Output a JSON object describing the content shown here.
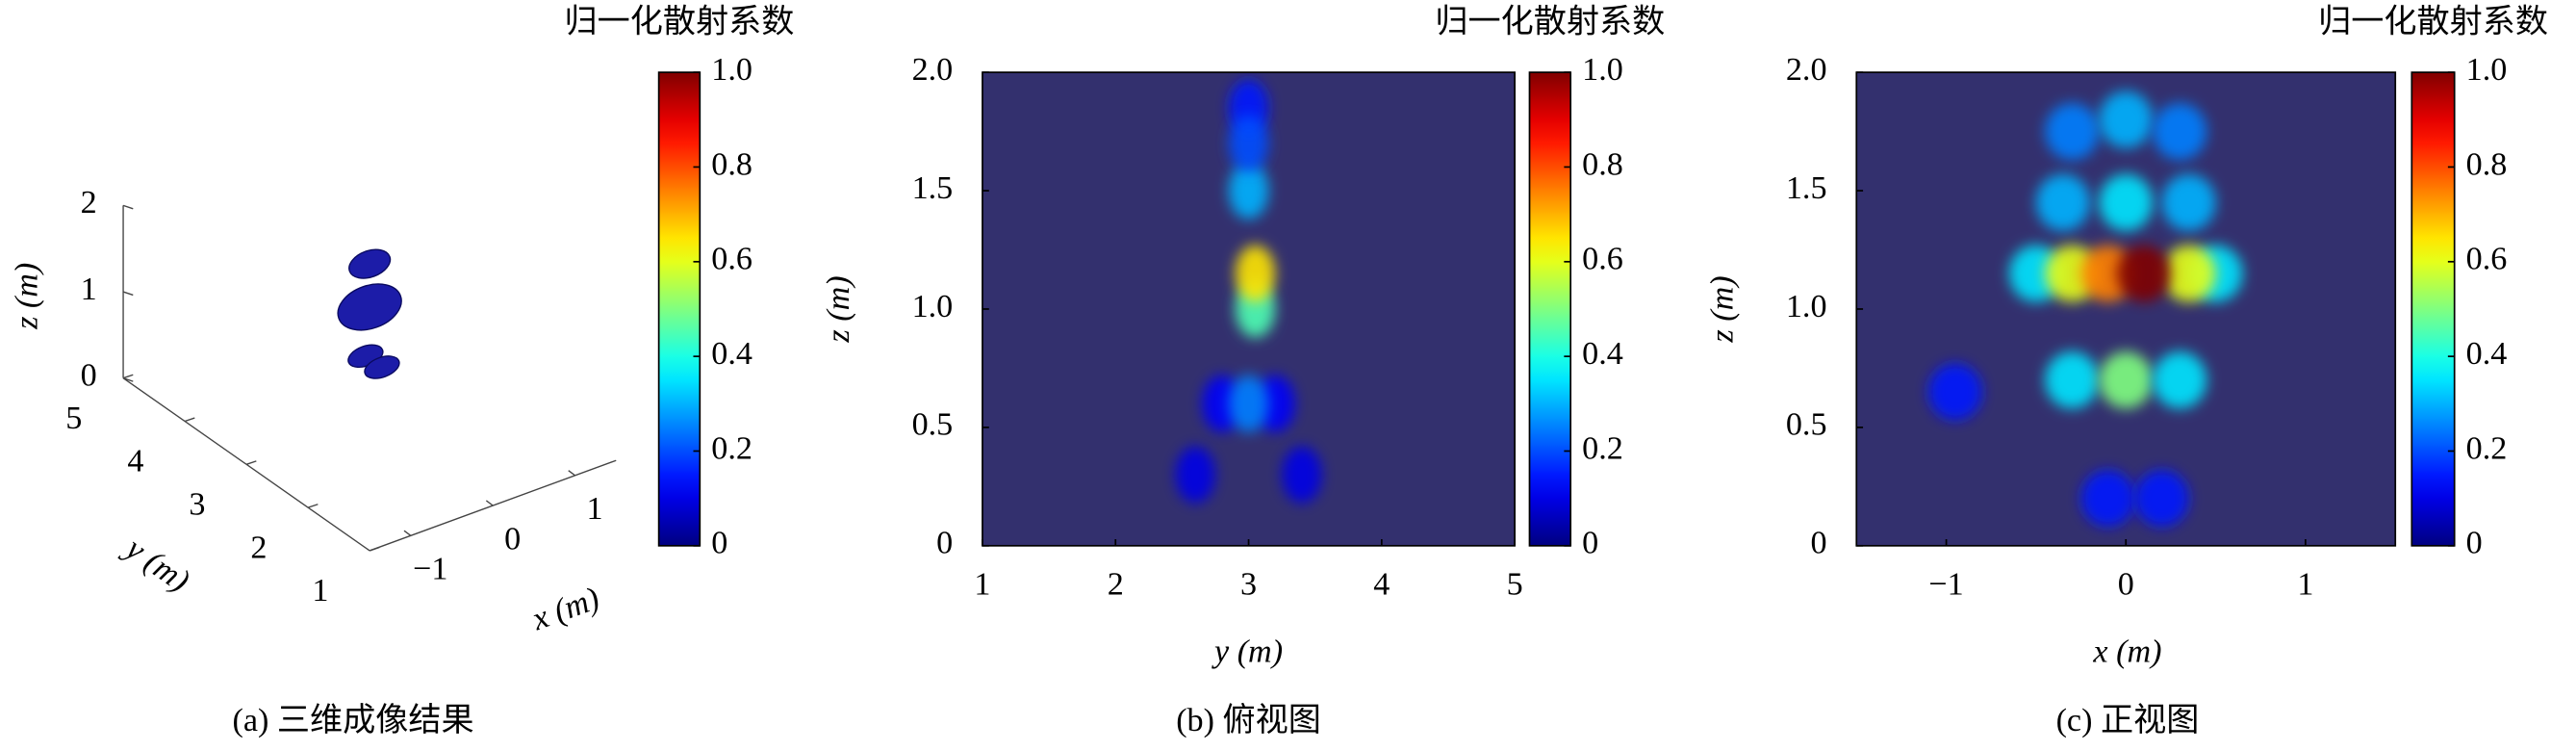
{
  "chart_data": [
    {
      "type": "scatter3d",
      "caption": "(a) 三维成像结果",
      "xlabel": "x (m)",
      "ylabel": "y (m)",
      "zlabel": "z (m)",
      "xlim": [
        -1.5,
        1.5
      ],
      "ylim": [
        1,
        5
      ],
      "zlim": [
        0,
        2
      ],
      "xticks": [
        {
          "value": -1,
          "label": "−1"
        },
        0,
        1
      ],
      "yticks": [
        1,
        2,
        3,
        4,
        5
      ],
      "zticks": [
        0,
        1,
        2
      ],
      "x": [
        0,
        0,
        -0.05,
        0.15
      ],
      "y": [
        3,
        3,
        3,
        3
      ],
      "z": [
        1.8,
        1.3,
        0.75,
        0.55
      ],
      "color": "#1c1ca8",
      "colorbar_title": "归一化散射系数",
      "clim": [
        0,
        1
      ],
      "cticks": [
        0,
        0.2,
        0.4,
        0.6,
        0.8,
        {
          "value": 1,
          "label": "1.0"
        }
      ],
      "colormap": "jet"
    },
    {
      "type": "heatmap",
      "caption": "(b) 俯视图",
      "xlabel": "y (m)",
      "ylabel": "z (m)",
      "xlim": [
        1,
        5
      ],
      "ylim": [
        0,
        2
      ],
      "xticks": [
        1,
        2,
        3,
        4,
        5
      ],
      "yticks": [
        0,
        0.5,
        {
          "value": 1,
          "label": "1.0"
        },
        1.5,
        {
          "value": 2,
          "label": "2.0"
        }
      ],
      "background": "#33306e",
      "x": [
        2.6,
        3.4,
        2.8,
        3.2,
        3.0,
        3.0,
        3.0,
        3.05,
        3.0,
        3.05
      ],
      "y": [
        0.3,
        0.3,
        0.6,
        0.6,
        0.6,
        1.85,
        1.5,
        1.0,
        1.7,
        1.15
      ],
      "values": [
        0.1,
        0.1,
        0.12,
        0.12,
        0.25,
        0.15,
        0.3,
        0.45,
        0.2,
        0.65
      ],
      "colorbar_title": "归一化散射系数",
      "clim": [
        0,
        1
      ],
      "cticks": [
        0,
        0.2,
        0.4,
        0.6,
        0.8,
        {
          "value": 1,
          "label": "1.0"
        }
      ],
      "colormap": "jet"
    },
    {
      "type": "heatmap",
      "caption": "(c) 正视图",
      "xlabel": "x (m)",
      "ylabel": "z (m)",
      "xlim": [
        -1.5,
        1.5
      ],
      "ylim": [
        0,
        2
      ],
      "xticks": [
        {
          "value": -1,
          "label": "−1"
        },
        0,
        1
      ],
      "yticks": [
        0,
        0.5,
        {
          "value": 1,
          "label": "1.0"
        },
        1.5,
        {
          "value": 2,
          "label": "2.0"
        }
      ],
      "background": "#33306e",
      "x": [
        -0.95,
        -0.1,
        0.2,
        -0.3,
        0,
        0.3,
        -0.35,
        0,
        0.35,
        -0.5,
        0.5,
        -0.3,
        0,
        0.3,
        -0.3,
        0.35,
        -0.1,
        0.1
      ],
      "y": [
        0.65,
        0.2,
        0.2,
        1.75,
        1.8,
        1.75,
        1.45,
        1.45,
        1.45,
        1.15,
        1.15,
        0.7,
        0.7,
        0.7,
        1.15,
        1.15,
        1.15,
        1.15
      ],
      "values": [
        0.15,
        0.15,
        0.15,
        0.25,
        0.3,
        0.25,
        0.3,
        0.35,
        0.3,
        0.35,
        0.35,
        0.35,
        0.5,
        0.35,
        0.6,
        0.6,
        0.75,
        1.0
      ],
      "colorbar_title": "归一化散射系数",
      "clim": [
        0,
        1
      ],
      "cticks": [
        0,
        0.2,
        0.4,
        0.6,
        0.8,
        {
          "value": 1,
          "label": "1.0"
        }
      ],
      "colormap": "jet"
    }
  ]
}
